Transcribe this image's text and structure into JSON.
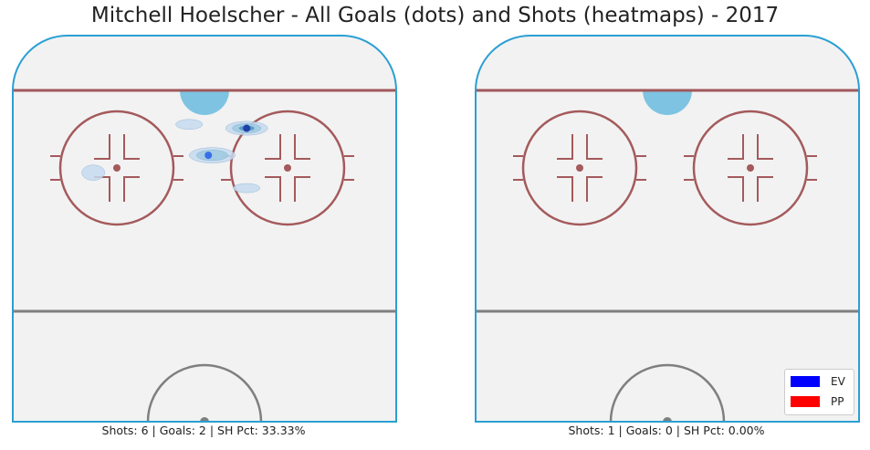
{
  "title": "Mitchell Hoelscher - All Goals (dots) and Shots (heatmaps) - 2017",
  "colors": {
    "ice": "#f2f2f2",
    "boards": "#2b9fd3",
    "goal_line": "#a0585a",
    "blue_line": "#7f7f7f",
    "crease": "#7ec4e2",
    "faceoff": "#a45a5c",
    "ev": "#0000ff",
    "pp": "#ff0000",
    "heat_light": "#c6dbef",
    "heat_mid": "#9ecae1",
    "heat_dark": "#4f8fc6",
    "goal_dot": "#3a6ee8",
    "goal_dot_dark": "#1f3fa8"
  },
  "legend": [
    {
      "label": "EV",
      "color": "#0000ff"
    },
    {
      "label": "PP",
      "color": "#ff0000"
    }
  ],
  "chart_data": [
    {
      "type": "scatter",
      "caption": "Shots: 6 | Goals: 2 | SH Pct: 33.33%",
      "shots": 6,
      "goals_count": 2,
      "sh_pct": "33.33%",
      "goals": [
        {
          "x": 0.61,
          "y": 0.24,
          "strength": "EV"
        },
        {
          "x": 0.51,
          "y": 0.31,
          "strength": "EV"
        }
      ],
      "shot_density": [
        {
          "x": 0.61,
          "y": 0.24,
          "sx": 0.055,
          "sy": 0.018,
          "level": 3
        },
        {
          "x": 0.52,
          "y": 0.31,
          "sx": 0.06,
          "sy": 0.02,
          "level": 2
        },
        {
          "x": 0.46,
          "y": 0.23,
          "sx": 0.035,
          "sy": 0.013,
          "level": 1
        },
        {
          "x": 0.21,
          "y": 0.355,
          "sx": 0.03,
          "sy": 0.02,
          "level": 1
        },
        {
          "x": 0.61,
          "y": 0.395,
          "sx": 0.035,
          "sy": 0.012,
          "level": 1
        }
      ]
    },
    {
      "type": "scatter",
      "caption": "Shots: 1 | Goals: 0 | SH Pct: 0.00%",
      "shots": 1,
      "goals_count": 0,
      "sh_pct": "0.00%",
      "goals": [],
      "shot_density": []
    }
  ]
}
